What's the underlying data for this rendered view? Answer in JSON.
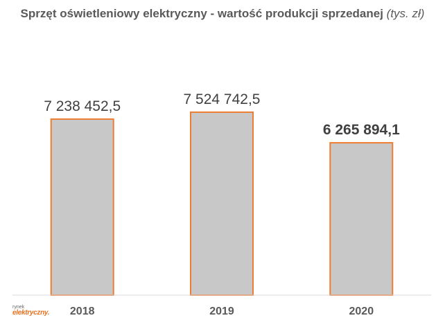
{
  "chart_data": {
    "type": "bar",
    "title_main": "Sprzęt oświetleniowy elektryczny - wartość produkcji sprzedanej",
    "title_unit": "(tys. zł)",
    "categories": [
      "2018",
      "2019",
      "2020"
    ],
    "values": [
      7238452.5,
      7524742.5,
      6265894.1
    ],
    "value_labels": [
      "7 238 452,5",
      "7 524 742,5",
      "6 265 894,1"
    ],
    "highlight_index": 2,
    "ylim": [
      0,
      10200000
    ],
    "grid": false,
    "legend": "none",
    "colors": {
      "bar_fill": "#c8c8c8",
      "bar_stroke": "#ed7d31",
      "axis": "#d9d9d9",
      "text": "#595959",
      "label": "#404040"
    }
  },
  "watermark": {
    "line1": "rynek",
    "line2": "elektryczny."
  }
}
